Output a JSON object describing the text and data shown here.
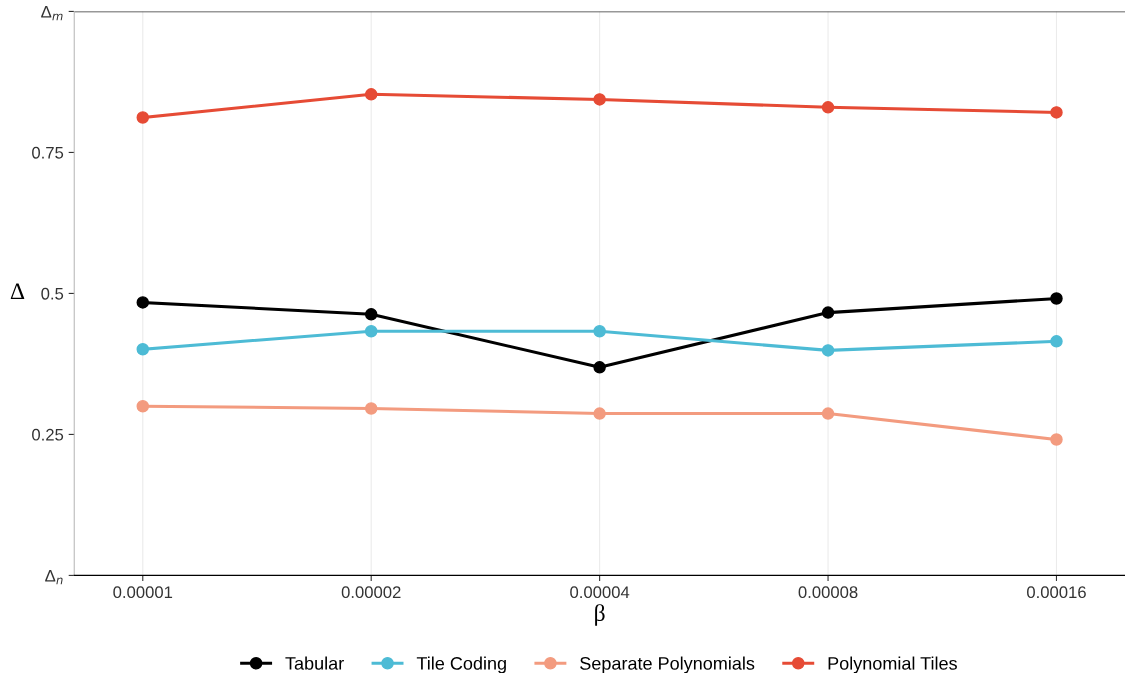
{
  "chart_data": {
    "type": "line",
    "xlabel": "β",
    "ylabel": "Δ",
    "categories": [
      "0.00001",
      "0.00002",
      "0.00004",
      "0.00008",
      "0.00016"
    ],
    "series": [
      {
        "name": "Tabular",
        "color": "#000000",
        "values": [
          0.484,
          0.463,
          0.369,
          0.466,
          0.491
        ]
      },
      {
        "name": "Tile Coding",
        "color": "#4dbbd5",
        "values": [
          0.401,
          0.433,
          0.433,
          0.399,
          0.415
        ]
      },
      {
        "name": "Separate Polynomials",
        "color": "#f39b7f",
        "values": [
          0.3,
          0.296,
          0.287,
          0.287,
          0.241
        ]
      },
      {
        "name": "Polynomial Tiles",
        "color": "#e64b35",
        "values": [
          0.812,
          0.853,
          0.844,
          0.83,
          0.821
        ]
      }
    ],
    "ylim": [
      0,
      1
    ],
    "yticks": [
      {
        "value": 0,
        "label": "Δ$_{n}$"
      },
      0.25,
      0.5,
      0.75,
      {
        "value": 1,
        "label": "Δ$_{m}$"
      }
    ],
    "ref_lines": [
      {
        "axis": "y",
        "value": 1,
        "label": null,
        "color": "#333333"
      }
    ],
    "grid": "x",
    "legend": "bottom",
    "marker": "circle",
    "line_style": "solid"
  }
}
